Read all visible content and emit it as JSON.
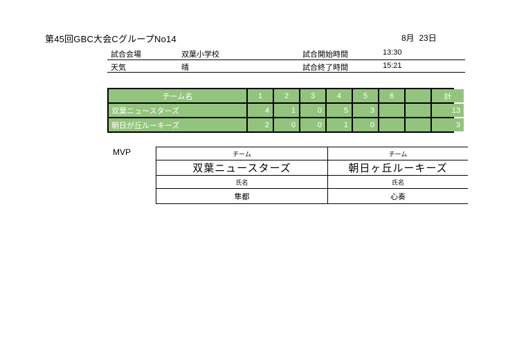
{
  "header": {
    "title": "第45回GBC大会CグループNo14",
    "date": "8月  23日"
  },
  "info": {
    "venue_label": "試合会場",
    "venue": "双葉小学校",
    "start_label": "試合開始時間",
    "start_time": "13:30",
    "weather_label": "天気",
    "weather": "晴",
    "end_label": "試合終了時間",
    "end_time": "15:21"
  },
  "scoreboard": {
    "team_col_label": "チーム名",
    "inning_labels": [
      "1",
      "2",
      "3",
      "4",
      "5",
      "6",
      ""
    ],
    "total_label": "計",
    "rows": [
      {
        "team": "双葉ニュースターズ",
        "innings": [
          "4",
          "1",
          "0",
          "5",
          "3",
          "",
          ""
        ],
        "total": "13"
      },
      {
        "team": "朝日が丘ルーキーズ",
        "innings": [
          "2",
          "0",
          "0",
          "1",
          "0",
          "",
          ""
        ],
        "total": "3"
      }
    ]
  },
  "mvp": {
    "label": "MVP",
    "team_label": "チーム",
    "name_label": "氏名",
    "entries": [
      {
        "team": "双葉ニュースターズ",
        "name": "隼都"
      },
      {
        "team": "朝日ヶ丘ルーキーズ",
        "name": "心奏"
      }
    ]
  },
  "colors": {
    "table_green": "#93c47d",
    "border_black": "#000000",
    "score_text_white": "#ffffff"
  }
}
